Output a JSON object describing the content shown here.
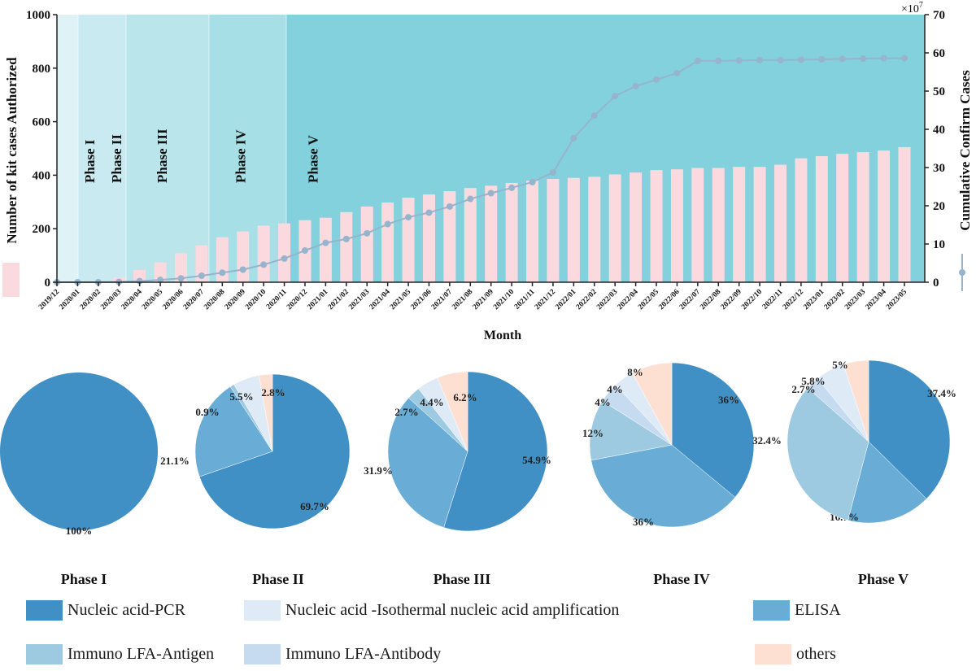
{
  "chart_data": [
    {
      "type": "bar+line",
      "title": "",
      "xlabel": "Month",
      "ylabel_left": "Number of kit cases Authorized",
      "ylabel_right": "Cumulative Confirm Cases",
      "right_axis_multiplier": "×10",
      "right_axis_multiplier_exp": "7",
      "ylim_left": [
        0,
        1000
      ],
      "ylim_right": [
        0,
        70
      ],
      "yticks_left": [
        0,
        200,
        400,
        600,
        800,
        1000
      ],
      "yticks_right": [
        0,
        10,
        20,
        30,
        40,
        50,
        60,
        70
      ],
      "categories": [
        "2019/12",
        "2020/01",
        "2020/02",
        "2020/03",
        "2020/04",
        "2020/05",
        "2020/06",
        "2020/07",
        "2020/08",
        "2020/09",
        "2020/10",
        "2020/11",
        "2020/12",
        "2021/01",
        "2021/02",
        "2021/03",
        "2021/04",
        "2021/05",
        "2021/06",
        "2021/07",
        "2021/08",
        "2021/09",
        "2021/10",
        "2021/11",
        "2021/12",
        "2022/01",
        "2022/02",
        "2022/03",
        "2022/04",
        "2022/05",
        "2022/06",
        "2022/07",
        "2022/08",
        "2022/09",
        "2022/10",
        "2022/11",
        "2022/12",
        "2023/01",
        "2023/02",
        "2023/03",
        "2023/04",
        "2023/05"
      ],
      "series": [
        {
          "name": "Number of kit cases Authorized",
          "type": "bar",
          "axis": "left",
          "color": "#fadadf",
          "values": [
            0,
            0,
            0,
            18,
            46,
            74,
            108,
            138,
            168,
            190,
            211,
            220,
            232,
            241,
            262,
            283,
            298,
            316,
            328,
            340,
            352,
            361,
            371,
            380,
            386,
            390,
            394,
            403,
            410,
            419,
            422,
            427,
            427,
            431,
            431,
            439,
            463,
            471,
            480,
            486,
            492,
            505
          ]
        },
        {
          "name": "Cumulative Confirm Cases",
          "type": "line",
          "axis": "right",
          "color": "#96b4cc",
          "values": [
            0,
            0.01,
            0.01,
            0.08,
            0.3,
            0.6,
            1.0,
            1.7,
            2.5,
            3.3,
            4.6,
            6.2,
            8.3,
            10.3,
            11.3,
            12.8,
            15.2,
            17.0,
            18.2,
            19.8,
            21.8,
            23.3,
            24.7,
            26.2,
            28.7,
            37.7,
            43.6,
            48.7,
            51.3,
            53.0,
            54.7,
            57.9,
            57.9,
            58.0,
            58.1,
            58.1,
            58.2,
            58.3,
            58.4,
            58.5,
            58.6,
            58.6
          ]
        }
      ],
      "phases": [
        {
          "label": "",
          "start": "2019/12",
          "end": "2020/01",
          "color": "#dff2f5"
        },
        {
          "label": "Phase I",
          "start": "2020/01",
          "end": "2020/03",
          "color": "#c9eaf0"
        },
        {
          "label": "Phase II",
          "start": "2020/03",
          "end": "2020/07",
          "color": "#bae5eb"
        },
        {
          "label": "Phase III",
          "start": "2020/07",
          "end": "2020/11",
          "color": "#a7dfe7"
        },
        {
          "label": "Phase IV",
          "start": "2020/11",
          "end": "2023/05",
          "color": "#82d1dd"
        }
      ],
      "phase_labels": [
        {
          "label": "Phase I",
          "at": 1.5
        },
        {
          "label": "Phase II",
          "at": 2.8
        },
        {
          "label": "Phase III",
          "at": 5.0
        },
        {
          "label": "Phase IV",
          "at": 8.8
        },
        {
          "label": "Phase V",
          "at": 12.3
        }
      ],
      "grid": false
    },
    {
      "type": "pie",
      "title": "Phase I",
      "slices": [
        {
          "category": "Nucleic acid-PCR",
          "value": 100,
          "label": "100%"
        }
      ]
    },
    {
      "type": "pie",
      "title": "Phase II",
      "slices": [
        {
          "category": "Nucleic acid-PCR",
          "value": 69.7,
          "label": "69.7%"
        },
        {
          "category": "ELISA",
          "value": 21.1,
          "label": "21.1%"
        },
        {
          "category": "Immuno LFA-Antigen",
          "value": 0.9,
          "label": "0.9%"
        },
        {
          "category": "Nucleic acid -Isothermal nucleic acid amplification",
          "value": 5.5,
          "label": "5.5%"
        },
        {
          "category": "others",
          "value": 2.8,
          "label": "2.8%"
        }
      ]
    },
    {
      "type": "pie",
      "title": "Phase III",
      "slices": [
        {
          "category": "Nucleic acid-PCR",
          "value": 54.9,
          "label": "54.9%"
        },
        {
          "category": "ELISA",
          "value": 31.9,
          "label": "31.9%"
        },
        {
          "category": "Immuno LFA-Antigen",
          "value": 2.7,
          "label": "2.7%"
        },
        {
          "category": "Nucleic acid -Isothermal nucleic acid amplification",
          "value": 4.4,
          "label": "4.4%"
        },
        {
          "category": "others",
          "value": 6.2,
          "label": "6.2%"
        }
      ]
    },
    {
      "type": "pie",
      "title": "Phase IV",
      "slices": [
        {
          "category": "Nucleic acid-PCR",
          "value": 36,
          "label": "36%"
        },
        {
          "category": "ELISA",
          "value": 36,
          "label": "36%"
        },
        {
          "category": "Immuno LFA-Antigen",
          "value": 12,
          "label": "12%"
        },
        {
          "category": "Immuno LFA-Antibody",
          "value": 4,
          "label": "4%"
        },
        {
          "category": "Nucleic acid -Isothermal nucleic acid amplification",
          "value": 4,
          "label": "4%"
        },
        {
          "category": "others",
          "value": 8,
          "label": "8%"
        }
      ]
    },
    {
      "type": "pie",
      "title": "Phase V",
      "slices": [
        {
          "category": "Nucleic acid-PCR",
          "value": 37.4,
          "label": "37.4%"
        },
        {
          "category": "ELISA",
          "value": 16.7,
          "label": "16.7%"
        },
        {
          "category": "Immuno LFA-Antigen",
          "value": 32.4,
          "label": "32.4%"
        },
        {
          "category": "Immuno LFA-Antibody",
          "value": 2.7,
          "label": "2.7%"
        },
        {
          "category": "Nucleic acid -Isothermal nucleic acid amplification",
          "value": 5.8,
          "label": "5.8%"
        },
        {
          "category": "others",
          "value": 5,
          "label": "5%"
        }
      ]
    }
  ],
  "category_colors": {
    "Nucleic acid-PCR": "#4190c5",
    "ELISA": "#69acd6",
    "Immuno LFA-Antigen": "#9ecae1",
    "Immuno LFA-Antibody": "#c6dbef",
    "Nucleic acid -Isothermal nucleic acid amplification": "#deebf7",
    "others": "#fde0d2"
  },
  "legend": {
    "items": [
      {
        "label": "Nucleic acid-PCR",
        "color": "#4190c5"
      },
      {
        "label": "Nucleic acid -Isothermal nucleic acid amplification",
        "color": "#deebf7"
      },
      {
        "label": "ELISA",
        "color": "#69acd6"
      },
      {
        "label": "Immuno LFA-Antigen",
        "color": "#9ecae1"
      },
      {
        "label": "Immuno LFA-Antibody",
        "color": "#c6dbef"
      },
      {
        "label": "others",
        "color": "#fde0d2"
      }
    ]
  }
}
